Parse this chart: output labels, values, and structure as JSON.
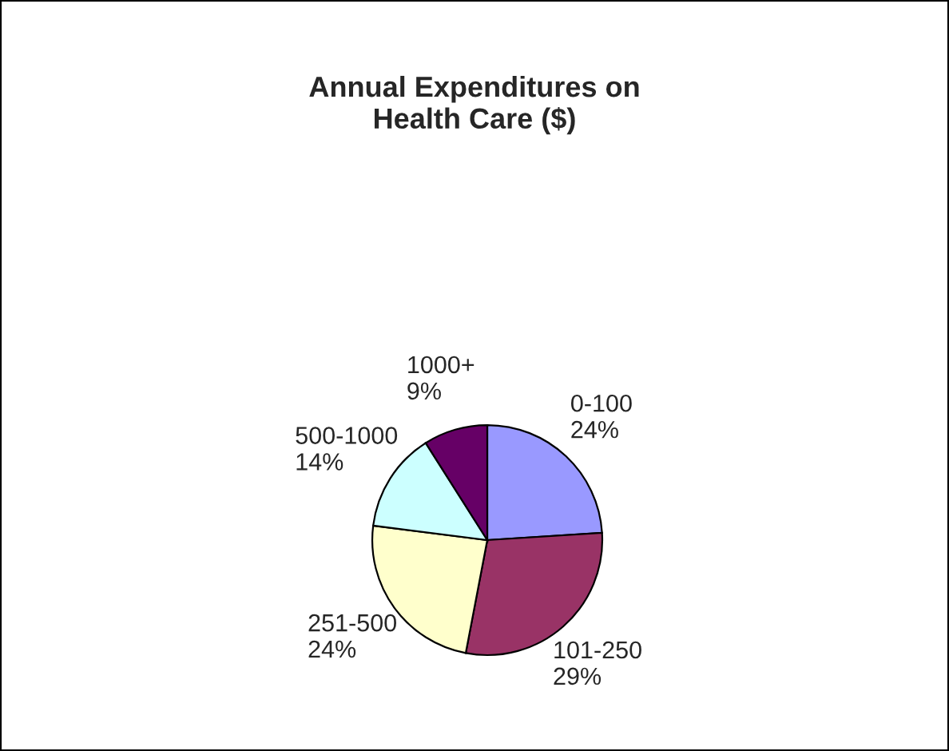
{
  "chart_data": {
    "type": "pie",
    "title": "Annual Expenditures on\nHealth Care ($)",
    "categories": [
      "0-100",
      "101-250",
      "251-500",
      "500-1000",
      "1000+"
    ],
    "values": [
      24,
      29,
      24,
      14,
      9
    ],
    "value_labels": [
      "24%",
      "29%",
      "24%",
      "14%",
      "9%"
    ],
    "colors": [
      "#9999ff",
      "#993366",
      "#ffffcc",
      "#ccffff",
      "#660066"
    ]
  }
}
